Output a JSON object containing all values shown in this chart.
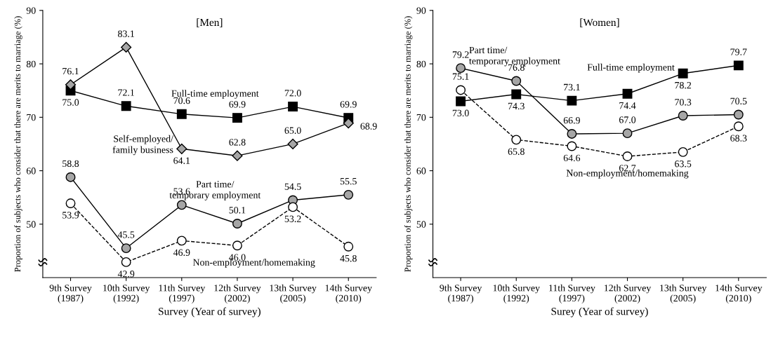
{
  "chart_data": [
    {
      "type": "line",
      "title": "[Men]",
      "xlabel": "Survey (Year of survey)",
      "ylabel": "Proportion of subjects who consider that there are merits to marriage (%)",
      "categories": [
        "9th Survey\n(1987)",
        "10th Survey\n(1992)",
        "11th Survey\n(1997)",
        "12th Survey\n(2002)",
        "13th Survey\n(2005)",
        "14th Survey\n(2010)"
      ],
      "ylim": [
        40,
        90
      ],
      "yticks": [
        50,
        60,
        70,
        80,
        90
      ],
      "grid": false,
      "legend": false,
      "series": [
        {
          "name": "Full-time employment",
          "color": "#000000",
          "marker": "square",
          "line_style": "solid",
          "values": [
            75.0,
            72.1,
            70.6,
            69.9,
            72.0,
            69.9
          ],
          "value_labels": [
            "75.0",
            "72.1",
            "70.6",
            "69.9",
            "72.0",
            "69.9"
          ]
        },
        {
          "name": "Self-employed/\nfamily business",
          "color": "#a6a6a6",
          "marker": "diamond",
          "line_style": "solid",
          "values": [
            76.1,
            83.1,
            64.1,
            62.8,
            65.0,
            68.9
          ],
          "value_labels": [
            "76.1",
            "83.1",
            "64.1",
            "62.8",
            "65.0",
            "68.9"
          ]
        },
        {
          "name": "Part time/\ntemporary employment",
          "color": "#a6a6a6",
          "marker": "circle",
          "line_style": "solid",
          "values": [
            58.8,
            45.5,
            53.6,
            50.1,
            54.5,
            55.5
          ],
          "value_labels": [
            "58.8",
            "45.5",
            "53.6",
            "50.1",
            "54.5",
            "55.5"
          ]
        },
        {
          "name": "Non-employment/homemaking",
          "color": "#ffffff",
          "marker": "circle",
          "line_style": "dashed",
          "values": [
            53.9,
            42.9,
            46.9,
            46.0,
            53.2,
            45.8
          ],
          "value_labels": [
            "53.9",
            "42.9",
            "46.9",
            "46.0",
            "53.2",
            "45.8"
          ]
        }
      ]
    },
    {
      "type": "line",
      "title": "[Women]",
      "xlabel": "Surey (Year of survey)",
      "ylabel": "Proportion of subjects who consider that there are merits to marriage (%)",
      "categories": [
        "9th Survey\n(1987)",
        "10th Survey\n(1992)",
        "11th Survey\n(1997)",
        "12th Survey\n(2002)",
        "13th Survey\n(2005)",
        "14th Survey\n(2010)"
      ],
      "ylim": [
        40,
        90
      ],
      "yticks": [
        50,
        60,
        70,
        80,
        90
      ],
      "grid": false,
      "legend": false,
      "series": [
        {
          "name": "Full-time employment",
          "color": "#000000",
          "marker": "square",
          "line_style": "solid",
          "values": [
            73.0,
            74.3,
            73.1,
            74.4,
            78.2,
            79.7
          ],
          "value_labels": [
            "73.0",
            "74.3",
            "73.1",
            "74.4",
            "78.2",
            "79.7"
          ]
        },
        {
          "name": "Part time/\ntemporary employment",
          "color": "#a6a6a6",
          "marker": "circle",
          "line_style": "solid",
          "values": [
            79.2,
            76.8,
            66.9,
            67.0,
            70.3,
            70.5
          ],
          "value_labels": [
            "79.2",
            "76.8",
            "66.9",
            "67.0",
            "70.3",
            "70.5"
          ]
        },
        {
          "name": "Non-employment/homemaking",
          "color": "#ffffff",
          "marker": "circle",
          "line_style": "dashed",
          "values": [
            75.1,
            65.8,
            64.6,
            62.7,
            63.5,
            68.3
          ],
          "value_labels": [
            "75.1",
            "65.8",
            "64.6",
            "62.7",
            "63.5",
            "68.3"
          ]
        }
      ]
    }
  ]
}
